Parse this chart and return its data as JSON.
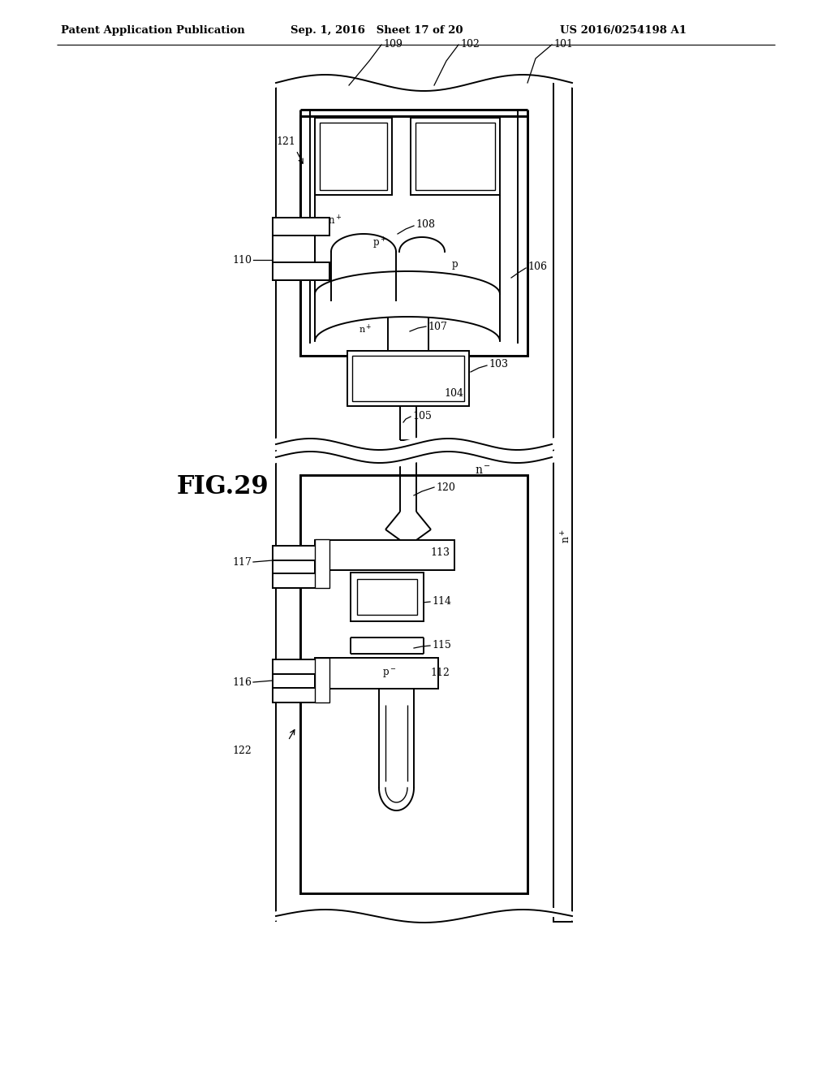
{
  "title_left": "Patent Application Publication",
  "title_center": "Sep. 1, 2016   Sheet 17 of 20",
  "title_right": "US 2016/0254198 A1",
  "fig_label": "FIG.29",
  "bg_color": "#ffffff",
  "lc": "#000000",
  "lw": 1.4,
  "header_fontsize": 9.5,
  "label_fontsize": 9,
  "fig_label_fontsize": 22
}
